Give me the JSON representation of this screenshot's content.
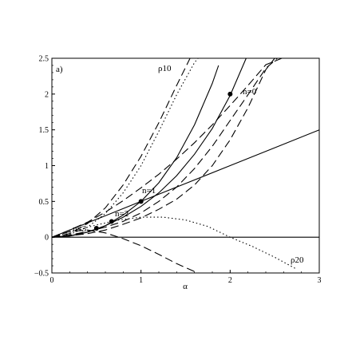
{
  "chart_data": {
    "type": "line",
    "panel_label": "a)",
    "xlabel": "α",
    "ylabel": "",
    "xlim": [
      0,
      3
    ],
    "ylim": [
      -0.5,
      2.5
    ],
    "xticks": [
      "0",
      "1",
      "2",
      "3"
    ],
    "yticks": [
      "−0.5",
      "0",
      "0.5",
      "1",
      "1.5",
      "2",
      "2.5"
    ],
    "grid": false,
    "labels": {
      "rho10": "ρ10",
      "rho20": "ρ20",
      "n0": "n=0",
      "n1": "n=1",
      "n2": "n=2",
      "n3": "n=3"
    },
    "series": [
      {
        "style": "solid",
        "x": [
          0,
          0.5,
          1,
          1.5,
          2,
          2.5,
          3
        ],
        "y": [
          0,
          0.25,
          0.5,
          0.75,
          1.0,
          1.25,
          1.5
        ]
      },
      {
        "style": "solid",
        "x": [
          0,
          3
        ],
        "y": [
          0,
          0
        ]
      },
      {
        "style": "solid",
        "x": [
          0,
          0.2,
          0.4,
          0.6,
          0.8,
          1.0,
          1.2,
          1.4,
          1.6,
          1.8,
          1.87
        ],
        "y": [
          0,
          0.015,
          0.07,
          0.16,
          0.31,
          0.5,
          0.76,
          1.11,
          1.57,
          2.15,
          2.4
        ]
      },
      {
        "style": "solid",
        "x": [
          0,
          0.2,
          0.4,
          0.6,
          0.8,
          1.0,
          1.2,
          1.4,
          1.6,
          1.8,
          2.0,
          2.18
        ],
        "y": [
          0,
          0.02,
          0.07,
          0.16,
          0.28,
          0.43,
          0.62,
          0.86,
          1.16,
          1.52,
          1.98,
          2.5
        ]
      },
      {
        "style": "dotted",
        "name": "ρ10",
        "x": [
          0,
          0.2,
          0.4,
          0.6,
          0.8,
          1.0,
          1.2,
          1.4,
          1.6,
          1.64
        ],
        "y": [
          0,
          0.04,
          0.14,
          0.33,
          0.62,
          1.0,
          1.48,
          1.99,
          2.44,
          2.5
        ]
      },
      {
        "style": "dotted",
        "name": "ρ20",
        "x": [
          0,
          0.25,
          0.5,
          0.75,
          1.0,
          1.25,
          1.5,
          1.75,
          2.0,
          2.25,
          2.5,
          2.75
        ],
        "y": [
          0,
          0.09,
          0.17,
          0.24,
          0.28,
          0.28,
          0.24,
          0.15,
          0.0,
          -0.13,
          -0.28,
          -0.45
        ]
      },
      {
        "style": "dashed",
        "x": [
          0,
          0.2,
          0.4,
          0.6,
          0.8,
          1.0,
          1.2,
          1.4,
          1.55
        ],
        "y": [
          0,
          0.05,
          0.19,
          0.41,
          0.73,
          1.13,
          1.6,
          2.12,
          2.5
        ]
      },
      {
        "style": "dashed",
        "x": [
          0,
          0.2,
          0.4,
          0.6,
          0.8,
          1.0,
          1.2,
          1.4,
          1.6,
          1.8,
          2.0,
          2.2,
          2.4,
          2.5
        ],
        "y": [
          0,
          0.02,
          0.05,
          0.1,
          0.18,
          0.27,
          0.39,
          0.53,
          0.73,
          1.0,
          1.36,
          1.81,
          2.34,
          2.5
        ]
      },
      {
        "style": "dashed",
        "x": [
          0,
          0.2,
          0.4,
          0.6,
          0.8,
          1.0,
          1.2,
          1.4,
          1.6,
          1.8,
          2.0,
          2.2,
          2.4,
          2.58
        ],
        "y": [
          0,
          0.1,
          0.21,
          0.35,
          0.51,
          0.69,
          0.88,
          1.09,
          1.32,
          1.57,
          1.84,
          2.12,
          2.41,
          2.5
        ]
      },
      {
        "style": "dashed",
        "x": [
          0,
          0.2,
          0.4,
          0.6,
          0.8,
          1.0,
          1.2,
          1.4,
          1.6,
          1.8,
          2.0,
          2.2,
          2.4,
          2.53
        ],
        "y": [
          0,
          0.03,
          0.08,
          0.14,
          0.22,
          0.34,
          0.5,
          0.7,
          0.96,
          1.27,
          1.63,
          1.99,
          2.36,
          2.5
        ]
      },
      {
        "style": "dashed",
        "x": [
          0,
          0.2,
          0.4,
          0.6,
          0.8,
          1.0,
          1.2,
          1.4,
          1.6,
          1.64
        ],
        "y": [
          0,
          0.08,
          0.1,
          0.06,
          -0.02,
          -0.12,
          -0.24,
          -0.37,
          -0.48,
          -0.5
        ]
      }
    ],
    "points": [
      {
        "x": 2.0,
        "y": 2.0,
        "label": "n=0"
      },
      {
        "x": 1.0,
        "y": 0.5,
        "label": "n=1"
      },
      {
        "x": 0.67,
        "y": 0.22,
        "label": "n=2"
      },
      {
        "x": 0.5,
        "y": 0.125,
        "label": "n=3"
      }
    ]
  }
}
